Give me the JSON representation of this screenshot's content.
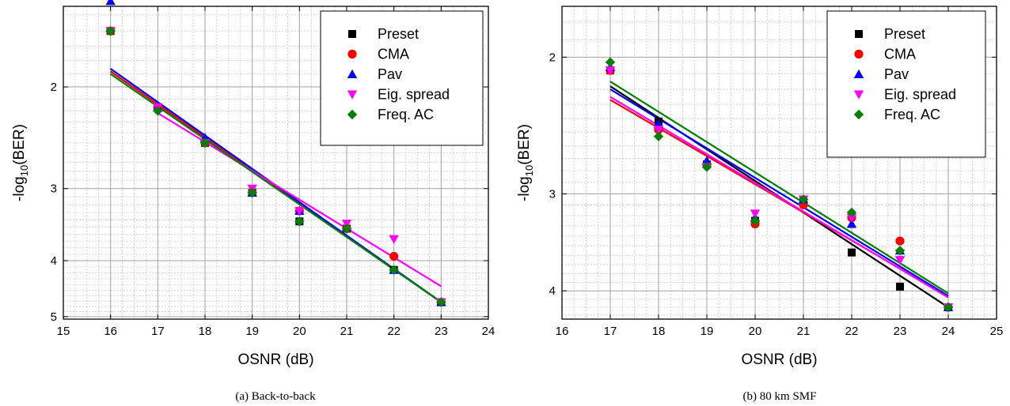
{
  "colors": {
    "Preset": "#000000",
    "CMA": "#ff0000",
    "Pav": "#0000ff",
    "Eig. spread": "#ff00ff",
    "Freq. AC": "#008000"
  },
  "chart_data": [
    {
      "type": "scatter",
      "caption": "(a) Back-to-back",
      "xlabel": "OSNR (dB)",
      "ylabel_main": "-log",
      "ylabel_sub": "10",
      "ylabel_tail": "(BER)",
      "xlim": [
        15,
        24
      ],
      "ylim": [
        1.45,
        5.05
      ],
      "x_ticks": [
        "15",
        "16",
        "17",
        "18",
        "19",
        "20",
        "21",
        "22",
        "23",
        "24"
      ],
      "y_ticks": [
        {
          "value": 2,
          "label": "2"
        },
        {
          "value": 3,
          "label": "3"
        },
        {
          "value": 4,
          "label": "4"
        },
        {
          "value": 5,
          "label": "5"
        }
      ],
      "log_scale": true,
      "grid": true,
      "legend_position": "top-right",
      "series": [
        {
          "name": "Preset",
          "marker": "square",
          "x": [
            16,
            17,
            18,
            19,
            20,
            21,
            22,
            23
          ],
          "y": [
            1.6,
            2.17,
            2.5,
            3.05,
            3.42,
            3.52,
            4.15,
            4.72
          ],
          "fit": [
            [
              16,
              1.88
            ],
            [
              23,
              4.72
            ]
          ]
        },
        {
          "name": "CMA",
          "marker": "circle",
          "x": [
            16,
            17,
            18,
            19,
            20,
            21,
            22,
            23
          ],
          "y": [
            1.6,
            2.17,
            2.5,
            3.05,
            3.28,
            3.52,
            3.93,
            4.72
          ],
          "fit": [
            [
              16,
              1.88
            ],
            [
              23,
              4.72
            ]
          ]
        },
        {
          "name": "Pav",
          "marker": "triangle-up",
          "x": [
            16,
            17,
            18,
            19,
            20,
            21,
            22,
            23
          ],
          "y": [
            1.42,
            2.17,
            2.45,
            3.05,
            3.28,
            3.5,
            4.15,
            4.72
          ],
          "fit": [
            [
              16,
              1.86
            ],
            [
              23,
              4.72
            ]
          ]
        },
        {
          "name": "Eig. spread",
          "marker": "triangle-down",
          "x": [
            16,
            17,
            18,
            19,
            20,
            21,
            22,
            23
          ],
          "y": [
            1.6,
            2.17,
            2.5,
            3.0,
            3.28,
            3.45,
            3.67,
            4.72
          ],
          "fit": [
            [
              17,
              2.22
            ],
            [
              23,
              4.43
            ]
          ]
        },
        {
          "name": "Freq. AC",
          "marker": "diamond",
          "x": [
            16,
            17,
            18,
            19,
            20,
            21,
            22,
            23
          ],
          "y": [
            1.6,
            2.2,
            2.5,
            3.05,
            3.42,
            3.52,
            4.15,
            4.72
          ],
          "fit": [
            [
              16,
              1.9
            ],
            [
              23,
              4.72
            ]
          ]
        }
      ]
    },
    {
      "type": "scatter",
      "caption": "(b) 80 km SMF",
      "xlabel": "OSNR (dB)",
      "ylabel_main": "-log",
      "ylabel_sub": "10",
      "ylabel_tail": "(BER)",
      "xlim": [
        16,
        25
      ],
      "ylim": [
        1.72,
        4.35
      ],
      "x_ticks": [
        "16",
        "17",
        "18",
        "19",
        "20",
        "21",
        "22",
        "23",
        "24",
        "25"
      ],
      "y_ticks": [
        {
          "value": 2,
          "label": "2"
        },
        {
          "value": 3,
          "label": "3"
        },
        {
          "value": 4,
          "label": "4"
        }
      ],
      "log_scale": true,
      "grid": true,
      "legend_position": "top-right",
      "series": [
        {
          "name": "Preset",
          "marker": "square",
          "x": [
            17,
            18,
            19,
            20,
            21,
            22,
            23,
            24
          ],
          "y": [
            2.08,
            2.42,
            2.75,
            3.25,
            3.05,
            3.57,
            3.95,
            4.2
          ],
          "fit": [
            [
              17,
              2.18
            ],
            [
              24,
              4.2
            ]
          ]
        },
        {
          "name": "CMA",
          "marker": "circle",
          "x": [
            17,
            18,
            19,
            20,
            21,
            22,
            23,
            24
          ],
          "y": [
            2.08,
            2.48,
            2.75,
            3.28,
            3.1,
            3.22,
            3.45,
            4.2
          ],
          "fit": [
            [
              17,
              2.27
            ],
            [
              24,
              4.07
            ]
          ]
        },
        {
          "name": "Pav",
          "marker": "triangle-up",
          "x": [
            17,
            18,
            19,
            20,
            21,
            22,
            23,
            24
          ],
          "y": [
            2.06,
            2.44,
            2.72,
            3.22,
            3.05,
            3.28,
            3.55,
            4.2
          ],
          "fit": [
            [
              17,
              2.2
            ],
            [
              24,
              4.06
            ]
          ]
        },
        {
          "name": "Eig. spread",
          "marker": "triangle-down",
          "x": [
            17,
            18,
            19,
            20,
            21,
            22,
            23,
            24
          ],
          "y": [
            2.08,
            2.48,
            2.77,
            3.18,
            3.05,
            3.22,
            3.65,
            4.2
          ],
          "fit": [
            [
              17,
              2.25
            ],
            [
              24,
              4.08
            ]
          ]
        },
        {
          "name": "Freq. AC",
          "marker": "diamond",
          "x": [
            17,
            18,
            19,
            20,
            21,
            22,
            23,
            24
          ],
          "y": [
            2.03,
            2.53,
            2.77,
            3.25,
            3.05,
            3.17,
            3.55,
            4.2
          ],
          "fit": [
            [
              17,
              2.15
            ],
            [
              24,
              4.03
            ]
          ]
        }
      ]
    }
  ]
}
